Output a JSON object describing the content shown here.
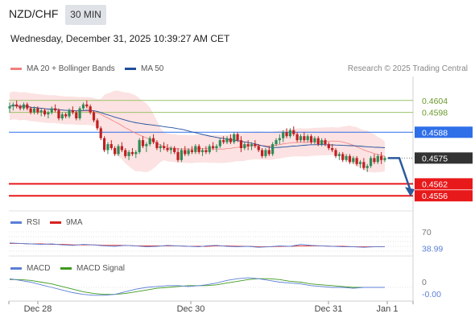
{
  "header": {
    "symbol": "NZD/CHF",
    "timeframe": "30 MIN",
    "datetime": "Wednesday, December 31, 2025 10:39:27 AM CET"
  },
  "legend": {
    "ma20_label": "MA 20 + Bollinger Bands",
    "ma50_label": "MA 50",
    "credit": "Research © 2025 Trading Central",
    "rsi_label": "RSI",
    "rsi_ma_label": "9MA",
    "macd_label": "MACD",
    "signal_label": "MACD Signal"
  },
  "colors": {
    "ma20": "#f08080",
    "ma50": "#1f4e9c",
    "band_fill": "#fbd8d8",
    "up": "#2e8b57",
    "down": "#c21f1f",
    "blue_line": "#2f6fe8",
    "red_line": "#e8191b",
    "green_line": "#9bc26a",
    "current": "#333333",
    "arrow": "#2b5a9c",
    "rsi": "#5b7fd6",
    "rsi_ma": "#d92020",
    "macd": "#5b7fd6",
    "signal": "#3e9a1e"
  },
  "chart_data": {
    "type": "candlestick",
    "x_tick_labels": [
      "Dec 28",
      "Dec 30",
      "Dec 31",
      "Jan 1"
    ],
    "y_range": [
      0.455,
      0.461
    ],
    "levels": [
      {
        "value": 0.4604,
        "label": "0.4604",
        "kind": "resistance-green"
      },
      {
        "value": 0.4598,
        "label": "0.4598",
        "kind": "resistance-green"
      },
      {
        "value": 0.4588,
        "label": "0.4588",
        "kind": "pivot-blue"
      },
      {
        "value": 0.4575,
        "label": "0.4575",
        "kind": "current"
      },
      {
        "value": 0.4562,
        "label": "0.4562",
        "kind": "target-red"
      },
      {
        "value": 0.4556,
        "label": "0.4556",
        "kind": "target-red"
      }
    ],
    "forecast_arrow": {
      "from": 0.4575,
      "to": 0.4556,
      "direction": "down"
    },
    "rsi": {
      "ticks": [
        "70"
      ],
      "value_label": "38.99",
      "values": [
        47,
        46,
        45,
        44,
        45,
        43,
        42,
        44,
        43,
        41,
        40,
        42,
        41,
        39,
        40,
        42,
        41,
        40,
        39,
        41,
        42,
        40,
        39,
        40,
        38,
        39,
        41,
        40,
        44,
        42,
        41,
        40,
        39,
        39,
        38,
        39,
        39
      ],
      "ma_values": [
        46,
        46,
        45,
        45,
        44,
        44,
        43,
        43,
        43,
        42,
        42,
        42,
        41,
        41,
        41,
        41,
        41,
        40,
        40,
        40,
        41,
        41,
        40,
        40,
        39,
        39,
        40,
        40,
        41,
        41,
        41,
        40,
        40,
        39,
        39,
        39,
        39
      ]
    },
    "macd": {
      "ticks": [
        "0"
      ],
      "value_label": "-0.00",
      "values": [
        0.1,
        0.08,
        0.06,
        0.03,
        0.0,
        -0.03,
        -0.06,
        -0.08,
        -0.09,
        -0.09,
        -0.08,
        -0.05,
        -0.02,
        0.0,
        0.01,
        0.02,
        0.02,
        0.01,
        0.02,
        0.03,
        0.05,
        0.08,
        0.1,
        0.11,
        0.1,
        0.08,
        0.06,
        0.05,
        0.04,
        0.02,
        0.01,
        0.0,
        0.0,
        -0.01,
        0.0,
        0.0,
        0.0
      ],
      "signal_values": [
        0.09,
        0.09,
        0.08,
        0.06,
        0.04,
        0.01,
        -0.02,
        -0.05,
        -0.07,
        -0.08,
        -0.08,
        -0.07,
        -0.05,
        -0.03,
        -0.01,
        0.0,
        0.01,
        0.02,
        0.02,
        0.02,
        0.03,
        0.05,
        0.07,
        0.09,
        0.1,
        0.1,
        0.09,
        0.07,
        0.06,
        0.04,
        0.03,
        0.02,
        0.01,
        0.0,
        0.0,
        0.0,
        0.0
      ]
    },
    "candles": [
      [
        0.46,
        0.4603,
        0.4598,
        0.4601
      ],
      [
        0.4601,
        0.4603,
        0.4599,
        0.4602
      ],
      [
        0.4602,
        0.4604,
        0.46,
        0.4601
      ],
      [
        0.4601,
        0.4602,
        0.4599,
        0.46
      ],
      [
        0.46,
        0.4603,
        0.4599,
        0.4602
      ],
      [
        0.4602,
        0.4603,
        0.4599,
        0.46
      ],
      [
        0.46,
        0.4601,
        0.4597,
        0.4598
      ],
      [
        0.4598,
        0.4601,
        0.4597,
        0.46
      ],
      [
        0.46,
        0.4601,
        0.4597,
        0.4598
      ],
      [
        0.4598,
        0.46,
        0.4596,
        0.4599
      ],
      [
        0.4599,
        0.46,
        0.4596,
        0.4597
      ],
      [
        0.4597,
        0.4599,
        0.4595,
        0.4598
      ],
      [
        0.4598,
        0.4601,
        0.4597,
        0.46
      ],
      [
        0.46,
        0.4602,
        0.4598,
        0.4599
      ],
      [
        0.4599,
        0.46,
        0.4594,
        0.4595
      ],
      [
        0.4595,
        0.4598,
        0.4594,
        0.4597
      ],
      [
        0.4597,
        0.4598,
        0.4595,
        0.4596
      ],
      [
        0.4596,
        0.46,
        0.4595,
        0.4599
      ],
      [
        0.4599,
        0.4601,
        0.4597,
        0.4598
      ],
      [
        0.4598,
        0.4599,
        0.4594,
        0.4595
      ],
      [
        0.4595,
        0.4601,
        0.4594,
        0.46
      ],
      [
        0.46,
        0.4603,
        0.4599,
        0.4602
      ],
      [
        0.4602,
        0.4604,
        0.46,
        0.4601
      ],
      [
        0.4601,
        0.4602,
        0.4597,
        0.4598
      ],
      [
        0.4598,
        0.4599,
        0.4593,
        0.4594
      ],
      [
        0.4594,
        0.4595,
        0.4589,
        0.459
      ],
      [
        0.459,
        0.4591,
        0.4584,
        0.4585
      ],
      [
        0.4585,
        0.4586,
        0.4578,
        0.4579
      ],
      [
        0.4579,
        0.4583,
        0.4577,
        0.4582
      ],
      [
        0.4582,
        0.4584,
        0.4579,
        0.458
      ],
      [
        0.458,
        0.4581,
        0.4576,
        0.4577
      ],
      [
        0.4577,
        0.4582,
        0.4576,
        0.4581
      ],
      [
        0.4581,
        0.4583,
        0.4578,
        0.4579
      ],
      [
        0.4579,
        0.458,
        0.4575,
        0.4576
      ],
      [
        0.4576,
        0.4579,
        0.4574,
        0.4578
      ],
      [
        0.4578,
        0.458,
        0.4576,
        0.4577
      ],
      [
        0.4577,
        0.4579,
        0.4575,
        0.4578
      ],
      [
        0.4578,
        0.4585,
        0.4577,
        0.4584
      ],
      [
        0.4584,
        0.4586,
        0.458,
        0.4581
      ],
      [
        0.4581,
        0.4583,
        0.4578,
        0.4582
      ],
      [
        0.4582,
        0.4586,
        0.4581,
        0.4585
      ],
      [
        0.4585,
        0.4587,
        0.4582,
        0.4583
      ],
      [
        0.4583,
        0.4584,
        0.4579,
        0.458
      ],
      [
        0.458,
        0.4582,
        0.4578,
        0.4581
      ],
      [
        0.4581,
        0.4583,
        0.4579,
        0.458
      ],
      [
        0.458,
        0.4582,
        0.4578,
        0.4579
      ],
      [
        0.4579,
        0.4581,
        0.4577,
        0.458
      ],
      [
        0.458,
        0.4581,
        0.4577,
        0.4578
      ],
      [
        0.4578,
        0.458,
        0.4573,
        0.4574
      ],
      [
        0.4574,
        0.458,
        0.4573,
        0.4579
      ],
      [
        0.4579,
        0.4581,
        0.4576,
        0.4577
      ],
      [
        0.4577,
        0.458,
        0.4576,
        0.4579
      ],
      [
        0.4579,
        0.4581,
        0.4577,
        0.4578
      ],
      [
        0.4578,
        0.4582,
        0.4577,
        0.4581
      ],
      [
        0.4581,
        0.4582,
        0.4577,
        0.4578
      ],
      [
        0.4578,
        0.458,
        0.4576,
        0.4579
      ],
      [
        0.4579,
        0.4581,
        0.4577,
        0.4578
      ],
      [
        0.4578,
        0.4582,
        0.4577,
        0.4581
      ],
      [
        0.4581,
        0.4583,
        0.4579,
        0.458
      ],
      [
        0.458,
        0.4582,
        0.4578,
        0.4581
      ],
      [
        0.4581,
        0.4585,
        0.458,
        0.4584
      ],
      [
        0.4584,
        0.4586,
        0.4582,
        0.4583
      ],
      [
        0.4583,
        0.4586,
        0.4582,
        0.4585
      ],
      [
        0.4585,
        0.4587,
        0.4582,
        0.4583
      ],
      [
        0.4583,
        0.4588,
        0.4582,
        0.4587
      ],
      [
        0.4587,
        0.4588,
        0.4583,
        0.4584
      ],
      [
        0.4584,
        0.4586,
        0.4578,
        0.458
      ],
      [
        0.458,
        0.4583,
        0.4579,
        0.4582
      ],
      [
        0.4582,
        0.4584,
        0.4579,
        0.4581
      ],
      [
        0.4581,
        0.4583,
        0.4579,
        0.4582
      ],
      [
        0.4582,
        0.4584,
        0.458,
        0.4581
      ],
      [
        0.4581,
        0.4582,
        0.4578,
        0.4579
      ],
      [
        0.4579,
        0.458,
        0.4575,
        0.4576
      ],
      [
        0.4576,
        0.458,
        0.4575,
        0.4579
      ],
      [
        0.4579,
        0.4581,
        0.4576,
        0.4577
      ],
      [
        0.4577,
        0.4583,
        0.4576,
        0.4582
      ],
      [
        0.4582,
        0.4585,
        0.4581,
        0.4584
      ],
      [
        0.4584,
        0.4587,
        0.4582,
        0.4585
      ],
      [
        0.4585,
        0.4589,
        0.4583,
        0.4588
      ],
      [
        0.4588,
        0.459,
        0.4585,
        0.4586
      ],
      [
        0.4586,
        0.459,
        0.4585,
        0.4589
      ],
      [
        0.4589,
        0.4591,
        0.4586,
        0.4587
      ],
      [
        0.4587,
        0.4588,
        0.4583,
        0.4584
      ],
      [
        0.4584,
        0.4587,
        0.4583,
        0.4586
      ],
      [
        0.4586,
        0.4588,
        0.4583,
        0.4584
      ],
      [
        0.4584,
        0.4587,
        0.4583,
        0.4586
      ],
      [
        0.4586,
        0.4587,
        0.4582,
        0.4583
      ],
      [
        0.4583,
        0.4586,
        0.4582,
        0.4585
      ],
      [
        0.4585,
        0.4586,
        0.4581,
        0.4582
      ],
      [
        0.4582,
        0.4585,
        0.4581,
        0.4584
      ],
      [
        0.4584,
        0.4585,
        0.4581,
        0.4582
      ],
      [
        0.4582,
        0.4583,
        0.4579,
        0.458
      ],
      [
        0.458,
        0.4582,
        0.4578,
        0.4579
      ],
      [
        0.4579,
        0.458,
        0.4575,
        0.4576
      ],
      [
        0.4576,
        0.4578,
        0.4574,
        0.4577
      ],
      [
        0.4577,
        0.4578,
        0.4573,
        0.4574
      ],
      [
        0.4574,
        0.4577,
        0.4573,
        0.4576
      ],
      [
        0.4576,
        0.4577,
        0.4572,
        0.4573
      ],
      [
        0.4573,
        0.4576,
        0.4572,
        0.4575
      ],
      [
        0.4575,
        0.4576,
        0.4571,
        0.4572
      ],
      [
        0.4572,
        0.4574,
        0.457,
        0.4573
      ],
      [
        0.4573,
        0.4575,
        0.4569,
        0.457
      ],
      [
        0.457,
        0.4572,
        0.4568,
        0.4571
      ],
      [
        0.4571,
        0.4576,
        0.457,
        0.4575
      ],
      [
        0.4575,
        0.4577,
        0.4572,
        0.4573
      ],
      [
        0.4573,
        0.4577,
        0.4572,
        0.4576
      ],
      [
        0.4576,
        0.4578,
        0.4572,
        0.4574
      ],
      [
        0.4574,
        0.4576,
        0.4573,
        0.4575
      ]
    ]
  }
}
